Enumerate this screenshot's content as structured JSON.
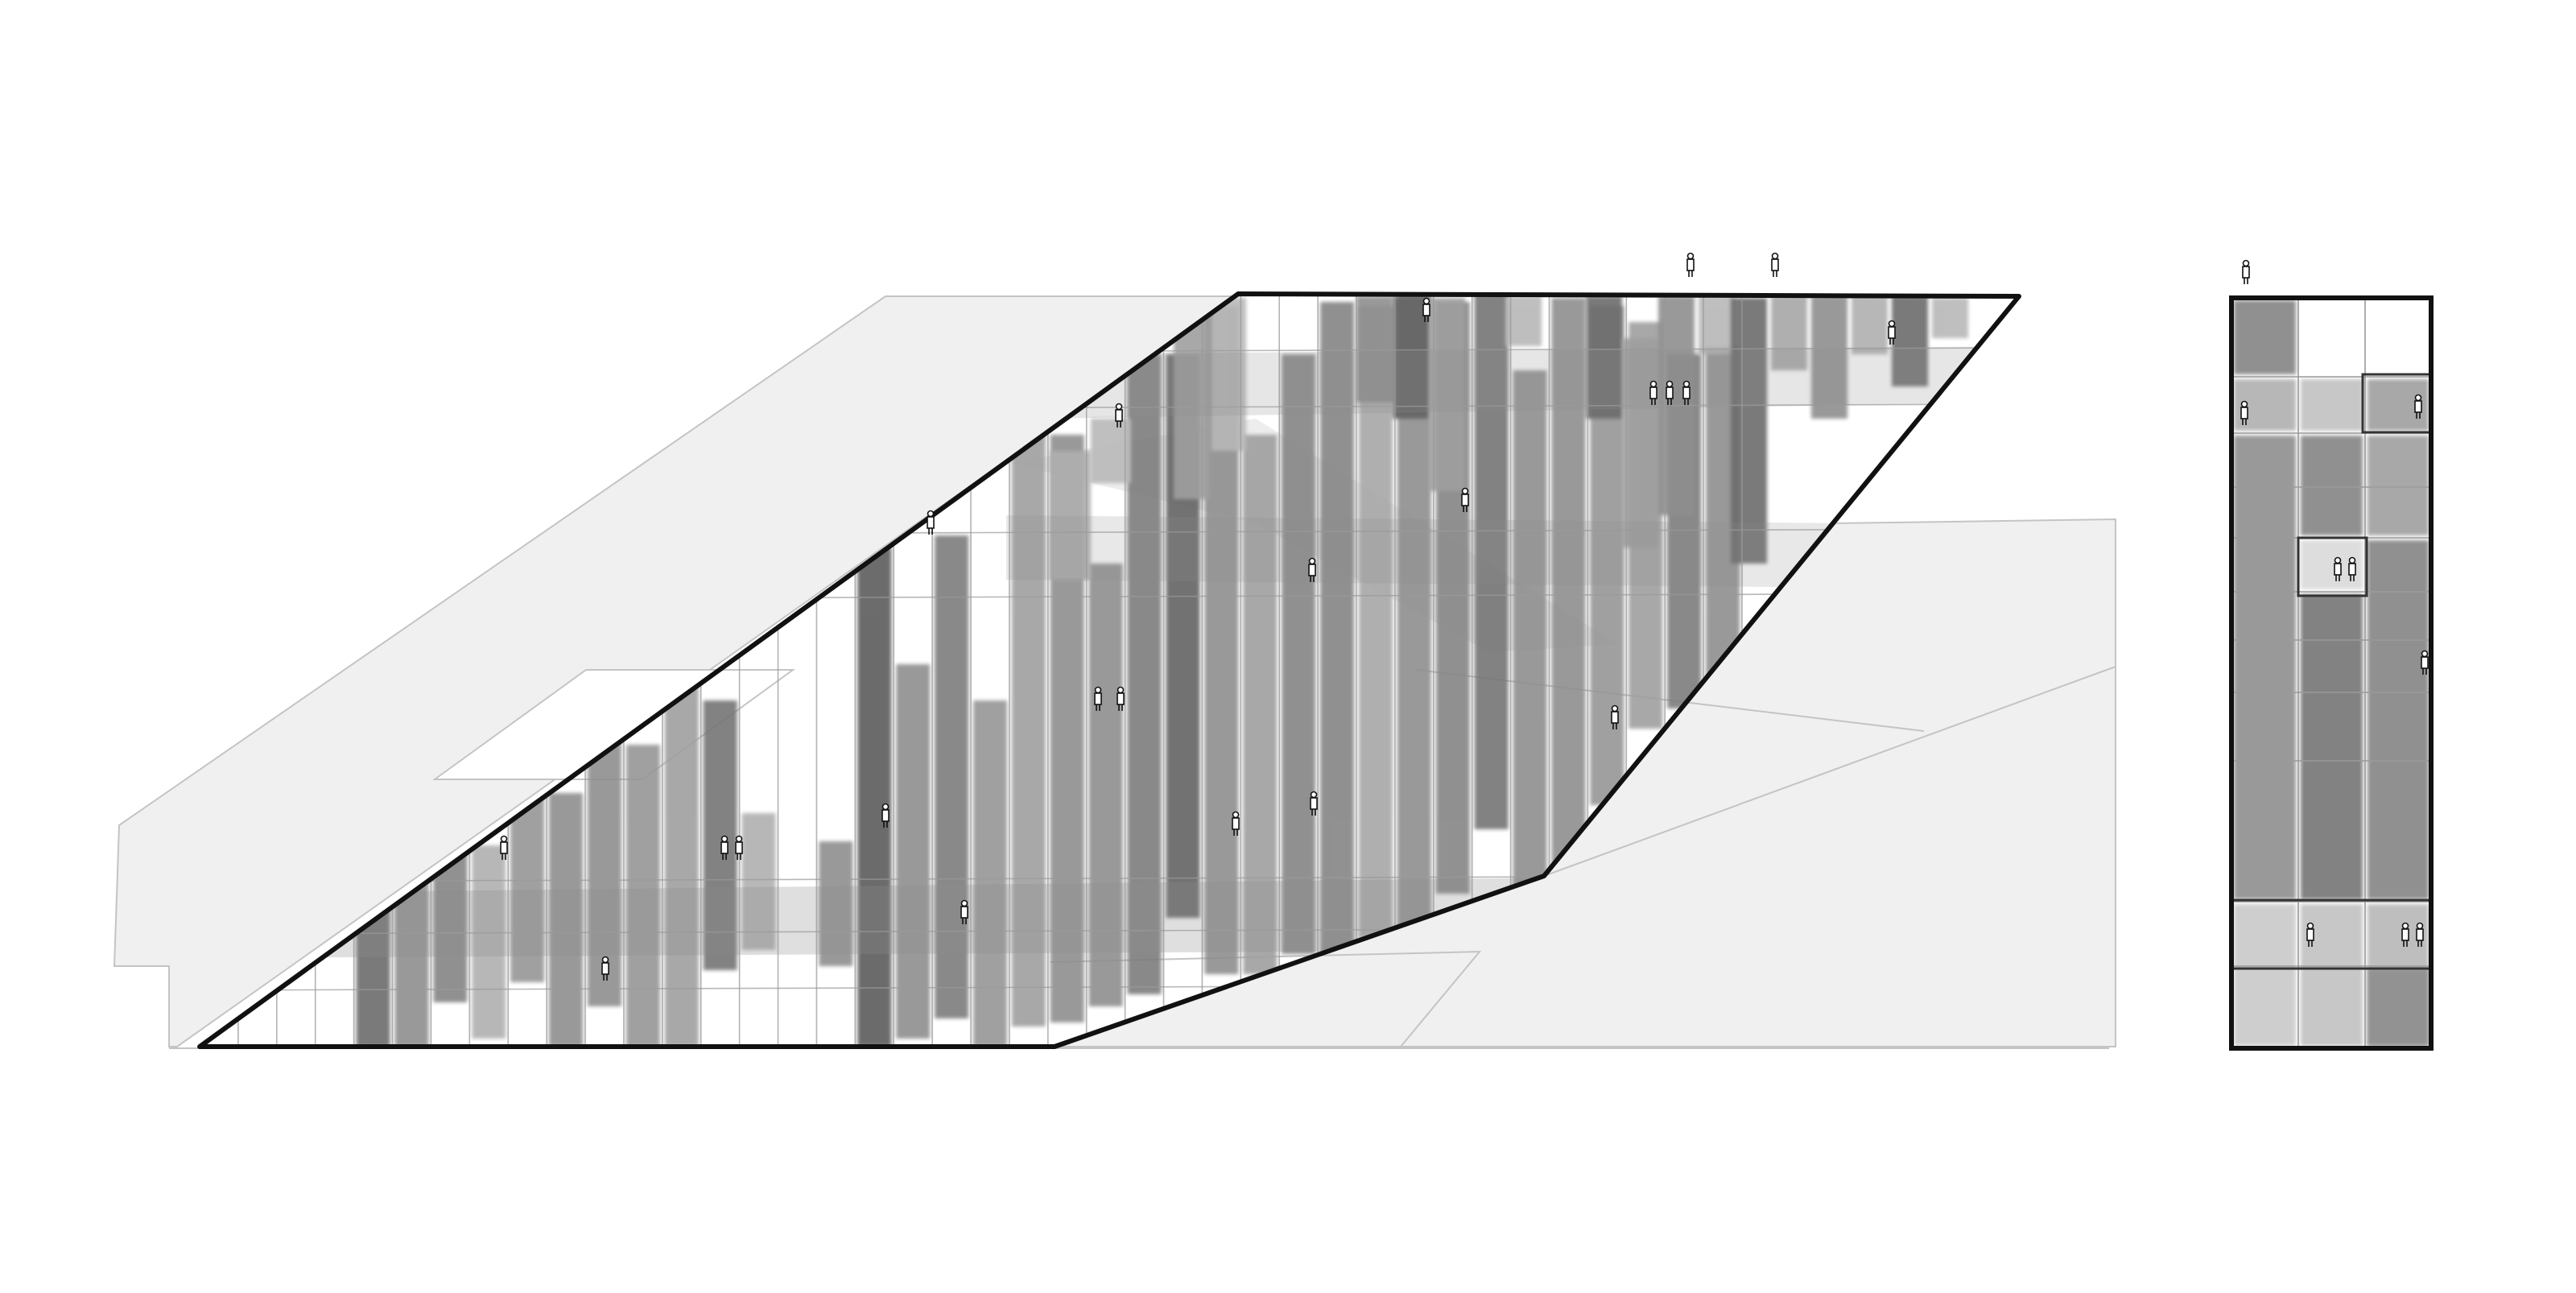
{
  "drawing": {
    "kind": "architectural-elevation-sketch",
    "style": "hand-drawn grayscale",
    "colors": {
      "paper": "#ffffff",
      "context_fill": "#f0f0f0",
      "context_line": "#c4c4c4",
      "outline": "#111111",
      "grid_line": "#9a9a9a",
      "panel_light": "#c9c9c9",
      "panel_mid": "#9c9c9c",
      "panel_dark": "#5e5e5e",
      "panel_darkest": "#454545"
    },
    "views": [
      {
        "name": "front-elevation",
        "shape": "parallelogram"
      },
      {
        "name": "side-elevation",
        "shape": "tall-rectangle"
      }
    ],
    "icons": [
      "person-figure-icon"
    ]
  }
}
